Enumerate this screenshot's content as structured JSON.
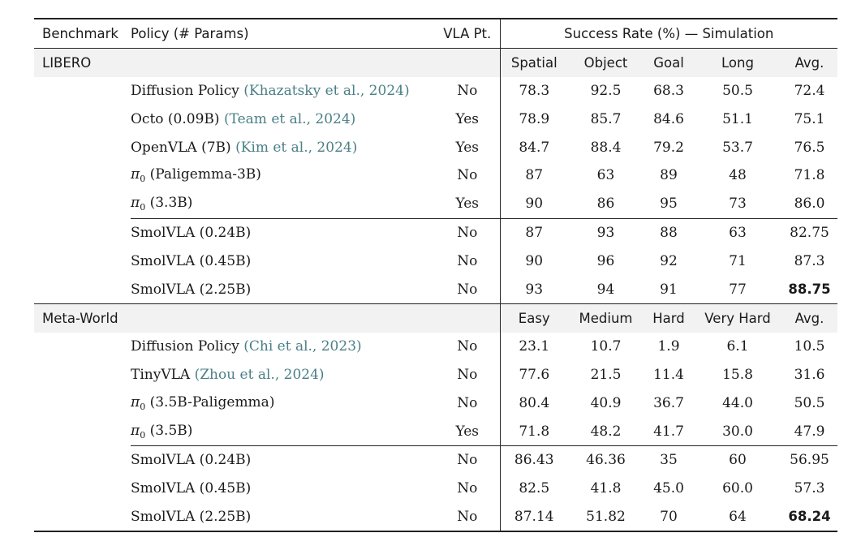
{
  "header": {
    "benchmark": "Benchmark",
    "policy": "Policy (# Params)",
    "vla_pt": "VLA Pt.",
    "success_rate": "Success Rate (%) — Simulation"
  },
  "sections": {
    "libero": {
      "name": "LIBERO",
      "columns": [
        "Spatial",
        "Object",
        "Goal",
        "Long",
        "Avg."
      ]
    },
    "metaworld": {
      "name": "Meta-World",
      "columns": [
        "Easy",
        "Medium",
        "Hard",
        "Very Hard",
        "Avg."
      ]
    }
  },
  "libero_rows": [
    {
      "policy": "Diffusion Policy",
      "cite": "(Khazatsky et al., 2024)",
      "pt": "No",
      "v": [
        "78.3",
        "92.5",
        "68.3",
        "50.5",
        "72.4"
      ]
    },
    {
      "policy": "Octo (0.09B)",
      "cite": "(Team et al., 2024)",
      "pt": "Yes",
      "v": [
        "78.9",
        "85.7",
        "84.6",
        "51.1",
        "75.1"
      ]
    },
    {
      "policy": "OpenVLA (7B)",
      "cite": "(Kim et al., 2024)",
      "pt": "Yes",
      "v": [
        "84.7",
        "88.4",
        "79.2",
        "53.7",
        "76.5"
      ]
    },
    {
      "pi": "π",
      "pi_sub": "0",
      "policy": "(Paligemma-3B)",
      "pt": "No",
      "v": [
        "87",
        "63",
        "89",
        "48",
        "71.8"
      ]
    },
    {
      "pi": "π",
      "pi_sub": "0",
      "policy": "(3.3B)",
      "pt": "Yes",
      "v": [
        "90",
        "86",
        "95",
        "73",
        "86.0"
      ]
    },
    {
      "policy": "SmolVLA (0.24B)",
      "pt": "No",
      "v": [
        "87",
        "93",
        "88",
        "63",
        "82.75"
      ]
    },
    {
      "policy": "SmolVLA (0.45B)",
      "pt": "No",
      "v": [
        "90",
        "96",
        "92",
        "71",
        "87.3"
      ]
    },
    {
      "policy": "SmolVLA (2.25B)",
      "pt": "No",
      "v": [
        "93",
        "94",
        "91",
        "77",
        "88.75"
      ]
    }
  ],
  "metaworld_rows": [
    {
      "policy": "Diffusion Policy",
      "cite": "(Chi et al., 2023)",
      "pt": "No",
      "v": [
        "23.1",
        "10.7",
        "1.9",
        "6.1",
        "10.5"
      ]
    },
    {
      "policy": "TinyVLA",
      "cite": "(Zhou et al., 2024)",
      "pt": "No",
      "v": [
        "77.6",
        "21.5",
        "11.4",
        "15.8",
        "31.6"
      ]
    },
    {
      "pi": "π",
      "pi_sub": "0",
      "policy": "(3.5B-Paligemma)",
      "pt": "No",
      "v": [
        "80.4",
        "40.9",
        "36.7",
        "44.0",
        "50.5"
      ]
    },
    {
      "pi": "π",
      "pi_sub": "0",
      "policy": "(3.5B)",
      "pt": "Yes",
      "v": [
        "71.8",
        "48.2",
        "41.7",
        "30.0",
        "47.9"
      ]
    },
    {
      "policy": "SmolVLA (0.24B)",
      "pt": "No",
      "v": [
        "86.43",
        "46.36",
        "35",
        "60",
        "56.95"
      ]
    },
    {
      "policy": "SmolVLA (0.45B)",
      "pt": "No",
      "v": [
        "82.5",
        "41.8",
        "45.0",
        "60.0",
        "57.3"
      ]
    },
    {
      "policy": "SmolVLA (2.25B)",
      "pt": "No",
      "v": [
        "87.14",
        "51.82",
        "70",
        "64",
        "68.24"
      ]
    }
  ],
  "bold_cells": [
    "libero.7.4",
    "metaworld.6.4"
  ],
  "colors": {
    "citation": "#4a7f86",
    "section_bg": "#f2f2f2",
    "rule": "#222222"
  }
}
